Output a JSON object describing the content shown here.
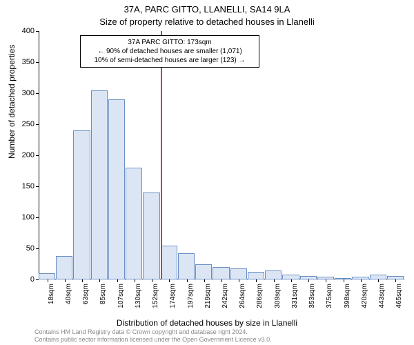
{
  "title_line1": "37A, PARC GITTO, LLANELLI, SA14 9LA",
  "title_line2": "Size of property relative to detached houses in Llanelli",
  "ylabel": "Number of detached properties",
  "xlabel": "Distribution of detached houses by size in Llanelli",
  "credits_line1": "Contains HM Land Registry data © Crown copyright and database right 2024.",
  "credits_line2": "Contains public sector information licensed under the Open Government Licence v3.0.",
  "chart": {
    "type": "histogram",
    "ylim": [
      0,
      400
    ],
    "yticks": [
      0,
      50,
      100,
      150,
      200,
      250,
      300,
      350,
      400
    ],
    "xticks": [
      "18sqm",
      "40sqm",
      "63sqm",
      "85sqm",
      "107sqm",
      "130sqm",
      "152sqm",
      "174sqm",
      "197sqm",
      "219sqm",
      "242sqm",
      "264sqm",
      "286sqm",
      "309sqm",
      "331sqm",
      "353sqm",
      "375sqm",
      "398sqm",
      "420sqm",
      "443sqm",
      "465sqm"
    ],
    "bar_fill": "#dbe5f4",
    "bar_stroke": "#6a8fc5",
    "values": [
      10,
      38,
      240,
      305,
      290,
      180,
      140,
      55,
      42,
      25,
      20,
      18,
      12,
      15,
      8,
      6,
      5,
      2,
      4,
      8,
      6
    ],
    "background_color": "#ffffff",
    "marker_index": 7,
    "marker_color": "#c44040"
  },
  "annotation": {
    "line1": "37A PARC GITTO: 173sqm",
    "line2": "← 90% of detached houses are smaller (1,071)",
    "line3": "10% of semi-detached houses are larger (123) →"
  }
}
